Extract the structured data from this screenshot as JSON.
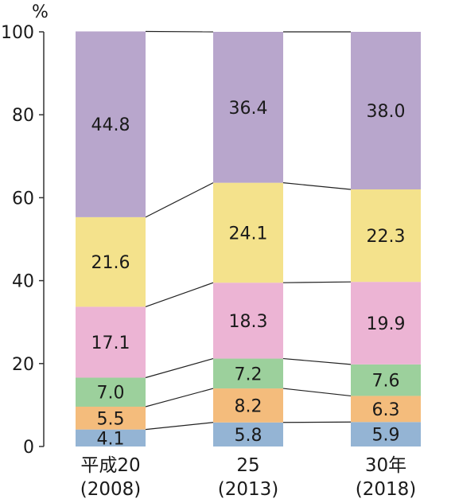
{
  "chart_data": {
    "type": "bar",
    "stacked": true,
    "unit": "%",
    "categories": [
      {
        "line1": "平成20",
        "line2": "(2008)"
      },
      {
        "line1": "25",
        "line2": "(2013)"
      },
      {
        "line1": "30年",
        "line2": "(2018)"
      }
    ],
    "series": [
      {
        "color": "#94b4d4",
        "values": [
          4.1,
          5.8,
          5.9
        ]
      },
      {
        "color": "#f4bc7c",
        "values": [
          5.5,
          8.2,
          6.3
        ]
      },
      {
        "color": "#9cd09c",
        "values": [
          7.0,
          7.2,
          7.6
        ]
      },
      {
        "color": "#ecb4d4",
        "values": [
          17.1,
          18.3,
          19.9
        ]
      },
      {
        "color": "#f4e28c",
        "values": [
          21.6,
          24.1,
          22.3
        ]
      },
      {
        "color": "#b8a6cc",
        "values": [
          44.8,
          36.4,
          38.0
        ]
      }
    ],
    "yticks": [
      "0",
      "20",
      "40",
      "60",
      "80",
      "100"
    ],
    "ylim": [
      0,
      100
    ],
    "grid": false,
    "legend": "none",
    "connector_lines": true
  }
}
